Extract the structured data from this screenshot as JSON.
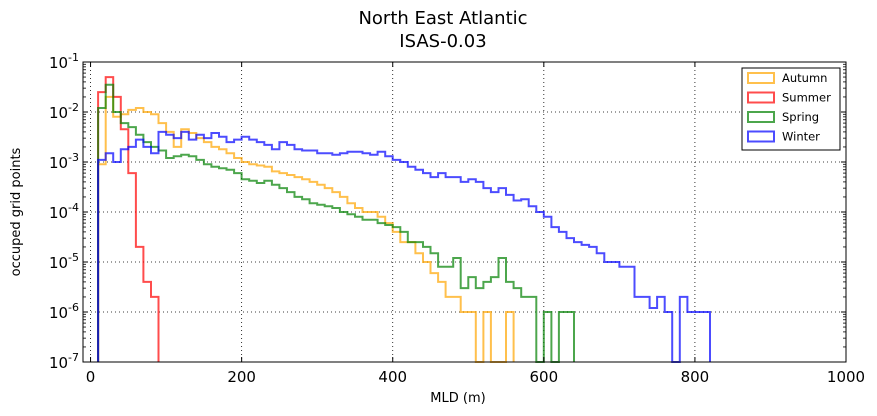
{
  "chart_data": {
    "type": "line",
    "title": "North East Atlantic",
    "subtitle": "ISAS-0.03",
    "xlabel": "MLD (m)",
    "ylabel": "occuped grid points",
    "xlim": [
      -10,
      1000
    ],
    "ylim": [
      1e-07,
      0.1
    ],
    "yscale": "log",
    "grid": true,
    "legend_position": "top-right",
    "x_ticks": [
      0,
      200,
      400,
      600,
      800,
      1000
    ],
    "x_tick_labels": [
      "0",
      "200",
      "400",
      "600",
      "800",
      "1000"
    ],
    "y_ticks": [
      {
        "value": 1e-07,
        "base": "10",
        "exp": "-7"
      },
      {
        "value": 1e-06,
        "base": "10",
        "exp": "-6"
      },
      {
        "value": 1e-05,
        "base": "10",
        "exp": "-5"
      },
      {
        "value": 0.0001,
        "base": "10",
        "exp": "-4"
      },
      {
        "value": 0.001,
        "base": "10",
        "exp": "-3"
      },
      {
        "value": 0.01,
        "base": "10",
        "exp": "-2"
      },
      {
        "value": 0.1,
        "base": "10",
        "exp": "-1"
      }
    ],
    "bin_edges_step": 10,
    "series": [
      {
        "name": "Autumn",
        "color": "#ffa500",
        "bin_start": 10,
        "values": [
          0.0009,
          0.02,
          0.008,
          0.009,
          0.011,
          0.012,
          0.01,
          0.009,
          0.006,
          0.004,
          0.002,
          0.0045,
          0.0038,
          0.003,
          0.0025,
          0.002,
          0.0018,
          0.0015,
          0.0012,
          0.001,
          0.0009,
          0.00085,
          0.0008,
          0.00065,
          0.0006,
          0.00055,
          0.0005,
          0.00045,
          0.0004,
          0.00035,
          0.0003,
          0.00025,
          0.0002,
          0.00015,
          0.00012,
          0.0001,
          0.0001,
          8e-05,
          6e-05,
          4e-05,
          2.5e-05,
          2.5e-05,
          1.5e-05,
          1e-05,
          6e-06,
          4e-06,
          2e-06,
          2e-06,
          1e-06,
          1e-06,
          0,
          1e-06,
          0,
          0,
          1e-06
        ]
      },
      {
        "name": "Summer",
        "color": "#ff0000",
        "bin_start": 10,
        "values": [
          0.025,
          0.05,
          0.02,
          0.0045,
          0.0006,
          2e-05,
          4e-06,
          2e-06
        ]
      },
      {
        "name": "Spring",
        "color": "#008000",
        "bin_start": 10,
        "values": [
          0.012,
          0.035,
          0.01,
          0.006,
          0.005,
          0.0035,
          0.0025,
          0.002,
          0.0017,
          0.0012,
          0.0013,
          0.0014,
          0.0013,
          0.0011,
          0.0009,
          0.0008,
          0.00075,
          0.0007,
          0.0006,
          0.00045,
          0.00042,
          0.00038,
          0.00042,
          0.00035,
          0.0003,
          0.00025,
          0.0002,
          0.00018,
          0.00015,
          0.00014,
          0.00013,
          0.00012,
          0.0001,
          9e-05,
          8e-05,
          7e-05,
          7e-05,
          6e-05,
          5.5e-05,
          5e-05,
          4e-05,
          2.5e-05,
          2.5e-05,
          2e-05,
          1.5e-05,
          8e-06,
          8e-06,
          1.2e-05,
          3e-06,
          5e-06,
          3e-06,
          4e-06,
          5e-06,
          1.2e-05,
          4e-06,
          3e-06,
          2e-06,
          2e-06,
          0,
          1e-06,
          0,
          1e-06,
          1e-06
        ]
      },
      {
        "name": "Winter",
        "color": "#0000ff",
        "bin_start": 10,
        "values": [
          0.0011,
          0.0015,
          0.001,
          0.0018,
          0.002,
          0.0028,
          0.002,
          0.0015,
          0.004,
          0.0035,
          0.003,
          0.004,
          0.0028,
          0.0035,
          0.003,
          0.0038,
          0.0032,
          0.0025,
          0.0028,
          0.0032,
          0.0028,
          0.0025,
          0.0022,
          0.0018,
          0.0025,
          0.0022,
          0.0018,
          0.0017,
          0.0017,
          0.0015,
          0.0015,
          0.0014,
          0.0015,
          0.0016,
          0.0016,
          0.0015,
          0.0014,
          0.0016,
          0.0013,
          0.0011,
          0.001,
          0.0008,
          0.0007,
          0.0006,
          0.0005,
          0.0006,
          0.0005,
          0.0005,
          0.0004,
          0.00045,
          0.0004,
          0.0003,
          0.00025,
          0.0003,
          0.00022,
          0.00017,
          0.00018,
          0.00013,
          0.0001,
          8e-05,
          5e-05,
          4e-05,
          3e-05,
          2.5e-05,
          2.2e-05,
          2e-05,
          1.5e-05,
          1e-05,
          1e-05,
          8e-06,
          8e-06,
          2e-06,
          2e-06,
          1.2e-06,
          2e-06,
          1e-06,
          0,
          2e-06,
          1e-06,
          1e-06,
          1e-06
        ]
      }
    ]
  }
}
